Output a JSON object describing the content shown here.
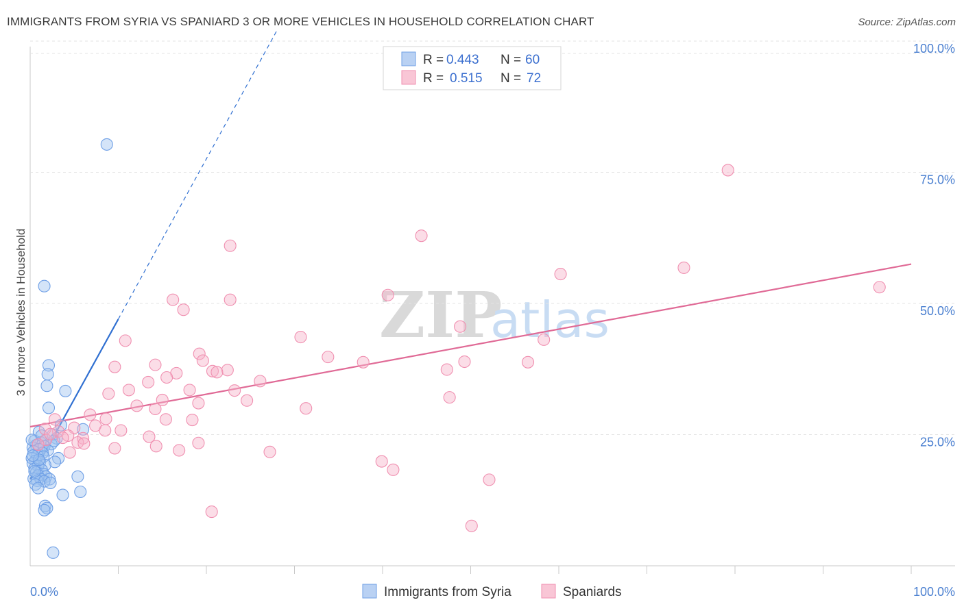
{
  "title": "IMMIGRANTS FROM SYRIA VS SPANIARD 3 OR MORE VEHICLES IN HOUSEHOLD CORRELATION CHART",
  "source": "Source: ZipAtlas.com",
  "watermark": {
    "zip": "ZIP",
    "atlas": "atlas"
  },
  "chart_data": {
    "type": "scatter",
    "title": "IMMIGRANTS FROM SYRIA VS SPANIARD 3 OR MORE VEHICLES IN HOUSEHOLD CORRELATION CHART",
    "xlabel": "",
    "ylabel": "3 or more Vehicles in Household",
    "xlim": [
      0,
      100
    ],
    "ylim": [
      0,
      105
    ],
    "x_tick_labels": {
      "left": "0.0%",
      "right": "100.0%"
    },
    "y_ticks": [
      25,
      50,
      75,
      100
    ],
    "y_tick_labels": [
      "25.0%",
      "50.0%",
      "75.0%",
      "100.0%"
    ],
    "grid": true,
    "legend_position": "top-center",
    "series": [
      {
        "name": "Immigrants from Syria",
        "color": "#6e9fe6",
        "line_color": "#2f6fd1",
        "stats": {
          "r_label": "R =",
          "r": "0.443",
          "n_label": "N =",
          "n": "60"
        },
        "trend": {
          "x0": 0,
          "y0": 16.5,
          "x1": 10,
          "y1": 47,
          "dash_to_x": 28,
          "dash_to_y": 102
        },
        "points": [
          [
            8.7,
            80.3
          ],
          [
            1.6,
            53.3
          ],
          [
            2.1,
            38.2
          ],
          [
            2.0,
            36.5
          ],
          [
            1.9,
            34.3
          ],
          [
            4.0,
            33.3
          ],
          [
            2.1,
            30.1
          ],
          [
            3.5,
            26.8
          ],
          [
            6.0,
            26.0
          ],
          [
            1.0,
            25.5
          ],
          [
            2.6,
            25.0
          ],
          [
            3.0,
            24.3
          ],
          [
            1.8,
            24.0
          ],
          [
            0.5,
            23.8
          ],
          [
            1.2,
            23.5
          ],
          [
            2.4,
            23.2
          ],
          [
            0.7,
            23.0
          ],
          [
            1.6,
            22.8
          ],
          [
            0.3,
            22.5
          ],
          [
            1.0,
            22.2
          ],
          [
            2.0,
            22.0
          ],
          [
            0.4,
            21.8
          ],
          [
            1.4,
            21.5
          ],
          [
            0.8,
            21.0
          ],
          [
            1.5,
            20.8
          ],
          [
            0.2,
            20.5
          ],
          [
            3.2,
            20.5
          ],
          [
            0.6,
            20.0
          ],
          [
            1.1,
            19.8
          ],
          [
            2.8,
            19.8
          ],
          [
            0.3,
            19.5
          ],
          [
            1.7,
            19.2
          ],
          [
            0.9,
            19.0
          ],
          [
            0.5,
            18.5
          ],
          [
            1.3,
            18.3
          ],
          [
            0.7,
            17.8
          ],
          [
            1.5,
            17.5
          ],
          [
            0.9,
            17.2
          ],
          [
            1.8,
            17.0
          ],
          [
            5.4,
            17.0
          ],
          [
            0.4,
            16.6
          ],
          [
            1.2,
            16.5
          ],
          [
            2.2,
            16.5
          ],
          [
            0.8,
            16.2
          ],
          [
            1.6,
            16.1
          ],
          [
            2.3,
            15.8
          ],
          [
            0.6,
            15.5
          ],
          [
            0.9,
            14.8
          ],
          [
            5.7,
            14.1
          ],
          [
            3.7,
            13.5
          ],
          [
            1.7,
            11.4
          ],
          [
            1.9,
            11.0
          ],
          [
            1.6,
            10.6
          ],
          [
            2.6,
            2.5
          ],
          [
            0.2,
            24.0
          ],
          [
            1.3,
            24.8
          ],
          [
            2.7,
            23.8
          ],
          [
            0.5,
            18.0
          ],
          [
            1.0,
            20.2
          ],
          [
            0.3,
            21.0
          ]
        ]
      },
      {
        "name": "Spaniards",
        "color": "#f08fb0",
        "line_color": "#e06a96",
        "stats": {
          "r_label": "R =",
          "r": "0.515",
          "n_label": "N =",
          "n": "72"
        },
        "trend": {
          "x0": 0,
          "y0": 26.5,
          "x1": 100,
          "y1": 57.5
        },
        "points": [
          [
            79.2,
            75.4
          ],
          [
            44.4,
            62.9
          ],
          [
            22.7,
            61.0
          ],
          [
            60.2,
            55.6
          ],
          [
            74.2,
            56.8
          ],
          [
            96.4,
            53.1
          ],
          [
            40.6,
            51.6
          ],
          [
            16.2,
            50.7
          ],
          [
            22.7,
            50.7
          ],
          [
            17.4,
            48.8
          ],
          [
            48.8,
            45.6
          ],
          [
            30.7,
            43.6
          ],
          [
            10.8,
            42.9
          ],
          [
            58.3,
            43.1
          ],
          [
            19.2,
            40.4
          ],
          [
            33.8,
            39.8
          ],
          [
            49.3,
            38.9
          ],
          [
            19.6,
            39.1
          ],
          [
            37.8,
            38.8
          ],
          [
            56.5,
            38.8
          ],
          [
            14.2,
            38.3
          ],
          [
            9.6,
            37.9
          ],
          [
            22.4,
            37.3
          ],
          [
            47.3,
            37.4
          ],
          [
            20.7,
            37.1
          ],
          [
            16.6,
            36.7
          ],
          [
            21.2,
            36.9
          ],
          [
            15.5,
            35.9
          ],
          [
            26.1,
            35.2
          ],
          [
            13.4,
            35.0
          ],
          [
            11.2,
            33.5
          ],
          [
            18.1,
            33.5
          ],
          [
            23.2,
            33.4
          ],
          [
            8.9,
            32.8
          ],
          [
            47.6,
            32.1
          ],
          [
            15.0,
            31.6
          ],
          [
            19.1,
            31.0
          ],
          [
            24.6,
            31.5
          ],
          [
            12.1,
            30.5
          ],
          [
            31.3,
            30.0
          ],
          [
            14.2,
            29.9
          ],
          [
            6.8,
            28.8
          ],
          [
            8.6,
            28.0
          ],
          [
            15.4,
            27.9
          ],
          [
            18.4,
            27.8
          ],
          [
            2.8,
            27.9
          ],
          [
            5.0,
            26.3
          ],
          [
            1.7,
            26.1
          ],
          [
            7.4,
            26.7
          ],
          [
            8.5,
            25.8
          ],
          [
            3.2,
            25.6
          ],
          [
            10.3,
            25.8
          ],
          [
            4.3,
            24.8
          ],
          [
            3.7,
            24.4
          ],
          [
            13.5,
            24.6
          ],
          [
            6.0,
            24.3
          ],
          [
            5.4,
            23.5
          ],
          [
            6.1,
            23.3
          ],
          [
            19.1,
            23.4
          ],
          [
            1.8,
            24.0
          ],
          [
            16.9,
            22.0
          ],
          [
            4.5,
            21.6
          ],
          [
            14.3,
            22.8
          ],
          [
            9.6,
            22.4
          ],
          [
            27.2,
            21.7
          ],
          [
            39.9,
            19.9
          ],
          [
            41.2,
            18.3
          ],
          [
            52.1,
            16.4
          ],
          [
            20.6,
            10.3
          ],
          [
            50.1,
            7.6
          ],
          [
            0.9,
            23.1
          ],
          [
            2.3,
            25.1
          ]
        ]
      }
    ]
  }
}
